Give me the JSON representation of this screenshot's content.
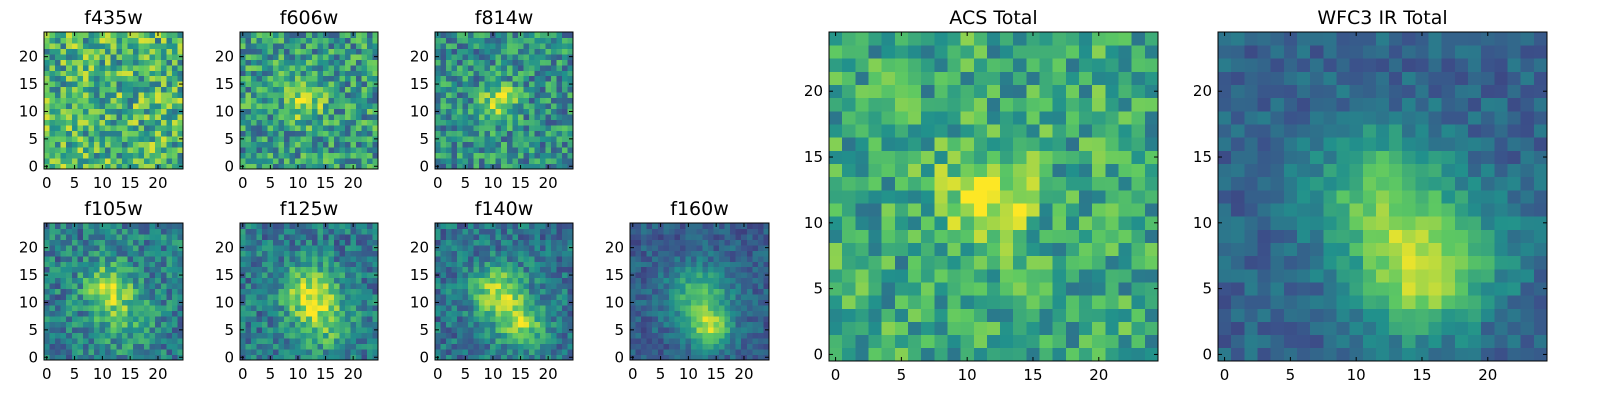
{
  "figure": {
    "colormap": "viridis",
    "colormap_stops": [
      "#440154",
      "#3b528b",
      "#21918c",
      "#5ec962",
      "#fde725"
    ],
    "frame_color": "#000000",
    "background": "#ffffff"
  },
  "chart_data": [
    {
      "type": "heatmap",
      "title": "f435w",
      "grid": [
        25,
        25
      ],
      "xlim": [
        -0.5,
        24.5
      ],
      "ylim": [
        -0.5,
        24.5
      ],
      "xticks": [
        0,
        5,
        10,
        15,
        20
      ],
      "yticks": [
        0,
        5,
        10,
        15,
        20
      ],
      "xtick_labels": [
        "0",
        "5",
        "10",
        "15",
        "20"
      ],
      "ytick_labels": [
        "0",
        "5",
        "10",
        "15",
        "20"
      ],
      "base_level": 0.65,
      "noise": 0.6,
      "peaks": []
    },
    {
      "type": "heatmap",
      "title": "f606w",
      "grid": [
        25,
        25
      ],
      "xlim": [
        -0.5,
        24.5
      ],
      "ylim": [
        -0.5,
        24.5
      ],
      "xticks": [
        0,
        5,
        10,
        15,
        20
      ],
      "yticks": [
        0,
        5,
        10,
        15,
        20
      ],
      "xtick_labels": [
        "0",
        "5",
        "10",
        "15",
        "20"
      ],
      "ytick_labels": [
        "0",
        "5",
        "10",
        "15",
        "20"
      ],
      "base_level": 0.55,
      "noise": 0.55,
      "peaks": [
        {
          "x": 11,
          "y": 12,
          "sigma": 2.5,
          "amp": 0.35
        }
      ]
    },
    {
      "type": "heatmap",
      "title": "f814w",
      "grid": [
        25,
        25
      ],
      "xlim": [
        -0.5,
        24.5
      ],
      "ylim": [
        -0.5,
        24.5
      ],
      "xticks": [
        0,
        5,
        10,
        15,
        20
      ],
      "yticks": [
        0,
        5,
        10,
        15,
        20
      ],
      "xtick_labels": [
        "0",
        "5",
        "10",
        "15",
        "20"
      ],
      "ytick_labels": [
        "0",
        "5",
        "10",
        "15",
        "20"
      ],
      "base_level": 0.5,
      "noise": 0.5,
      "peaks": [
        {
          "x": 11,
          "y": 12,
          "sigma": 2.2,
          "amp": 0.45
        }
      ]
    },
    {
      "type": "heatmap",
      "title": "f105w",
      "grid": [
        25,
        25
      ],
      "xlim": [
        -0.5,
        24.5
      ],
      "ylim": [
        -0.5,
        24.5
      ],
      "xticks": [
        0,
        5,
        10,
        15,
        20
      ],
      "yticks": [
        0,
        5,
        10,
        15,
        20
      ],
      "xtick_labels": [
        "0",
        "5",
        "10",
        "15",
        "20"
      ],
      "ytick_labels": [
        "0",
        "5",
        "10",
        "15",
        "20"
      ],
      "base_level": 0.42,
      "noise": 0.4,
      "peaks": [
        {
          "x": 11,
          "y": 13,
          "sigma": 3,
          "amp": 0.45
        },
        {
          "x": 14,
          "y": 7,
          "sigma": 3.5,
          "amp": 0.25
        }
      ]
    },
    {
      "type": "heatmap",
      "title": "f125w",
      "grid": [
        25,
        25
      ],
      "xlim": [
        -0.5,
        24.5
      ],
      "ylim": [
        -0.5,
        24.5
      ],
      "xticks": [
        0,
        5,
        10,
        15,
        20
      ],
      "yticks": [
        0,
        5,
        10,
        15,
        20
      ],
      "xtick_labels": [
        "0",
        "5",
        "10",
        "15",
        "20"
      ],
      "ytick_labels": [
        "0",
        "5",
        "10",
        "15",
        "20"
      ],
      "base_level": 0.4,
      "noise": 0.38,
      "peaks": [
        {
          "x": 12,
          "y": 12,
          "sigma": 3.5,
          "amp": 0.5
        },
        {
          "x": 15,
          "y": 6,
          "sigma": 3.5,
          "amp": 0.3
        }
      ]
    },
    {
      "type": "heatmap",
      "title": "f140w",
      "grid": [
        25,
        25
      ],
      "xlim": [
        -0.5,
        24.5
      ],
      "ylim": [
        -0.5,
        24.5
      ],
      "xticks": [
        0,
        5,
        10,
        15,
        20
      ],
      "yticks": [
        0,
        5,
        10,
        15,
        20
      ],
      "xtick_labels": [
        "0",
        "5",
        "10",
        "15",
        "20"
      ],
      "ytick_labels": [
        "0",
        "5",
        "10",
        "15",
        "20"
      ],
      "base_level": 0.38,
      "noise": 0.35,
      "peaks": [
        {
          "x": 11,
          "y": 12,
          "sigma": 3.2,
          "amp": 0.5
        },
        {
          "x": 15,
          "y": 6,
          "sigma": 3,
          "amp": 0.45
        }
      ]
    },
    {
      "type": "heatmap",
      "title": "f160w",
      "grid": [
        25,
        25
      ],
      "xlim": [
        -0.5,
        24.5
      ],
      "ylim": [
        -0.5,
        24.5
      ],
      "xticks": [
        0,
        5,
        10,
        15,
        20
      ],
      "yticks": [
        0,
        5,
        10,
        15,
        20
      ],
      "xtick_labels": [
        "0",
        "5",
        "10",
        "15",
        "20"
      ],
      "ytick_labels": [
        "0",
        "5",
        "10",
        "15",
        "20"
      ],
      "base_level": 0.3,
      "noise": 0.22,
      "peaks": [
        {
          "x": 12,
          "y": 11,
          "sigma": 4,
          "amp": 0.4
        },
        {
          "x": 14,
          "y": 5,
          "sigma": 2.5,
          "amp": 0.5
        }
      ]
    },
    {
      "type": "heatmap",
      "title": "ACS Total",
      "grid": [
        25,
        25
      ],
      "xlim": [
        -0.5,
        24.5
      ],
      "ylim": [
        -0.5,
        24.5
      ],
      "xticks": [
        0,
        5,
        10,
        15,
        20
      ],
      "yticks": [
        0,
        5,
        10,
        15,
        20
      ],
      "xtick_labels": [
        "0",
        "5",
        "10",
        "15",
        "20"
      ],
      "ytick_labels": [
        "0",
        "5",
        "10",
        "15",
        "20"
      ],
      "base_level": 0.6,
      "noise": 0.45,
      "peaks": [
        {
          "x": 11.5,
          "y": 12,
          "sigma": 2.3,
          "amp": 0.45
        }
      ]
    },
    {
      "type": "heatmap",
      "title": "WFC3 IR Total",
      "grid": [
        25,
        25
      ],
      "xlim": [
        -0.5,
        24.5
      ],
      "ylim": [
        -0.5,
        24.5
      ],
      "xticks": [
        0,
        5,
        10,
        15,
        20
      ],
      "yticks": [
        0,
        5,
        10,
        15,
        20
      ],
      "xtick_labels": [
        "0",
        "5",
        "10",
        "15",
        "20"
      ],
      "ytick_labels": [
        "0",
        "5",
        "10",
        "15",
        "20"
      ],
      "base_level": 0.32,
      "noise": 0.2,
      "peaks": [
        {
          "x": 12,
          "y": 12,
          "sigma": 3.5,
          "amp": 0.45
        },
        {
          "x": 14.5,
          "y": 5.5,
          "sigma": 3,
          "amp": 0.5
        },
        {
          "x": 19,
          "y": 8,
          "sigma": 3,
          "amp": 0.2
        }
      ]
    }
  ]
}
